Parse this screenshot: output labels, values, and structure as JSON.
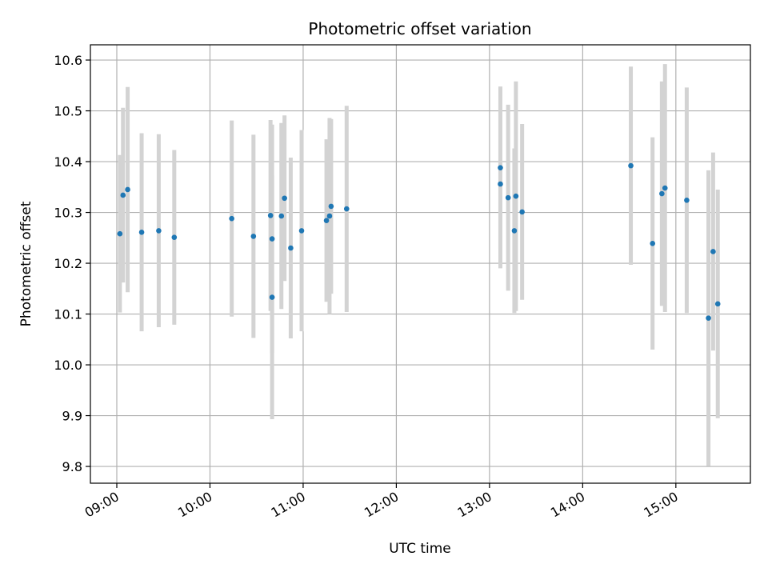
{
  "chart_data": {
    "type": "scatter",
    "title": "Photometric offset variation",
    "xlabel": "UTC time",
    "ylabel": "Photometric offset",
    "xlim": [
      "08:43",
      "15:48"
    ],
    "ylim": [
      9.767,
      10.63
    ],
    "x_ticks": [
      "09:00",
      "10:00",
      "11:00",
      "12:00",
      "13:00",
      "14:00",
      "15:00"
    ],
    "y_ticks": [
      9.8,
      9.9,
      10.0,
      10.1,
      10.2,
      10.3,
      10.4,
      10.5,
      10.6
    ],
    "y_tick_labels": [
      "9.8",
      "9.9",
      "10.0",
      "10.1",
      "10.2",
      "10.3",
      "10.4",
      "10.5",
      "10.6"
    ],
    "grid": true,
    "colors": {
      "point": "#1f77b4",
      "errorbar": "#d3d3d3",
      "grid": "#b0b0b0"
    },
    "points": [
      {
        "time": "09:02",
        "y": 10.258,
        "err": 0.155
      },
      {
        "time": "09:04",
        "y": 10.334,
        "err": 0.172
      },
      {
        "time": "09:07",
        "y": 10.345,
        "err": 0.202
      },
      {
        "time": "09:16",
        "y": 10.261,
        "err": 0.195
      },
      {
        "time": "09:27",
        "y": 10.264,
        "err": 0.19
      },
      {
        "time": "09:37",
        "y": 10.251,
        "err": 0.172
      },
      {
        "time": "10:14",
        "y": 10.288,
        "err": 0.193
      },
      {
        "time": "10:28",
        "y": 10.253,
        "err": 0.2
      },
      {
        "time": "10:39",
        "y": 10.294,
        "err": 0.188
      },
      {
        "time": "10:40",
        "y": 10.248,
        "err": 0.225
      },
      {
        "time": "10:40",
        "y": 10.133,
        "err": 0.24
      },
      {
        "time": "10:46",
        "y": 10.293,
        "err": 0.183
      },
      {
        "time": "10:48",
        "y": 10.328,
        "err": 0.163
      },
      {
        "time": "10:52",
        "y": 10.23,
        "err": 0.178
      },
      {
        "time": "10:59",
        "y": 10.264,
        "err": 0.198
      },
      {
        "time": "11:15",
        "y": 10.284,
        "err": 0.16
      },
      {
        "time": "11:17",
        "y": 10.293,
        "err": 0.193
      },
      {
        "time": "11:18",
        "y": 10.312,
        "err": 0.172
      },
      {
        "time": "11:28",
        "y": 10.307,
        "err": 0.203
      },
      {
        "time": "13:07",
        "y": 10.388,
        "err": 0.16
      },
      {
        "time": "13:07",
        "y": 10.356,
        "err": 0.166
      },
      {
        "time": "13:12",
        "y": 10.329,
        "err": 0.183
      },
      {
        "time": "13:16",
        "y": 10.264,
        "err": 0.162
      },
      {
        "time": "13:17",
        "y": 10.332,
        "err": 0.226
      },
      {
        "time": "13:21",
        "y": 10.301,
        "err": 0.173
      },
      {
        "time": "14:31",
        "y": 10.392,
        "err": 0.195
      },
      {
        "time": "14:45",
        "y": 10.239,
        "err": 0.209
      },
      {
        "time": "14:51",
        "y": 10.337,
        "err": 0.221
      },
      {
        "time": "14:53",
        "y": 10.348,
        "err": 0.244
      },
      {
        "time": "15:07",
        "y": 10.324,
        "err": 0.222
      },
      {
        "time": "15:21",
        "y": 10.092,
        "err": 0.291
      },
      {
        "time": "15:24",
        "y": 10.223,
        "err": 0.195
      },
      {
        "time": "15:27",
        "y": 10.12,
        "err": 0.225
      }
    ]
  }
}
